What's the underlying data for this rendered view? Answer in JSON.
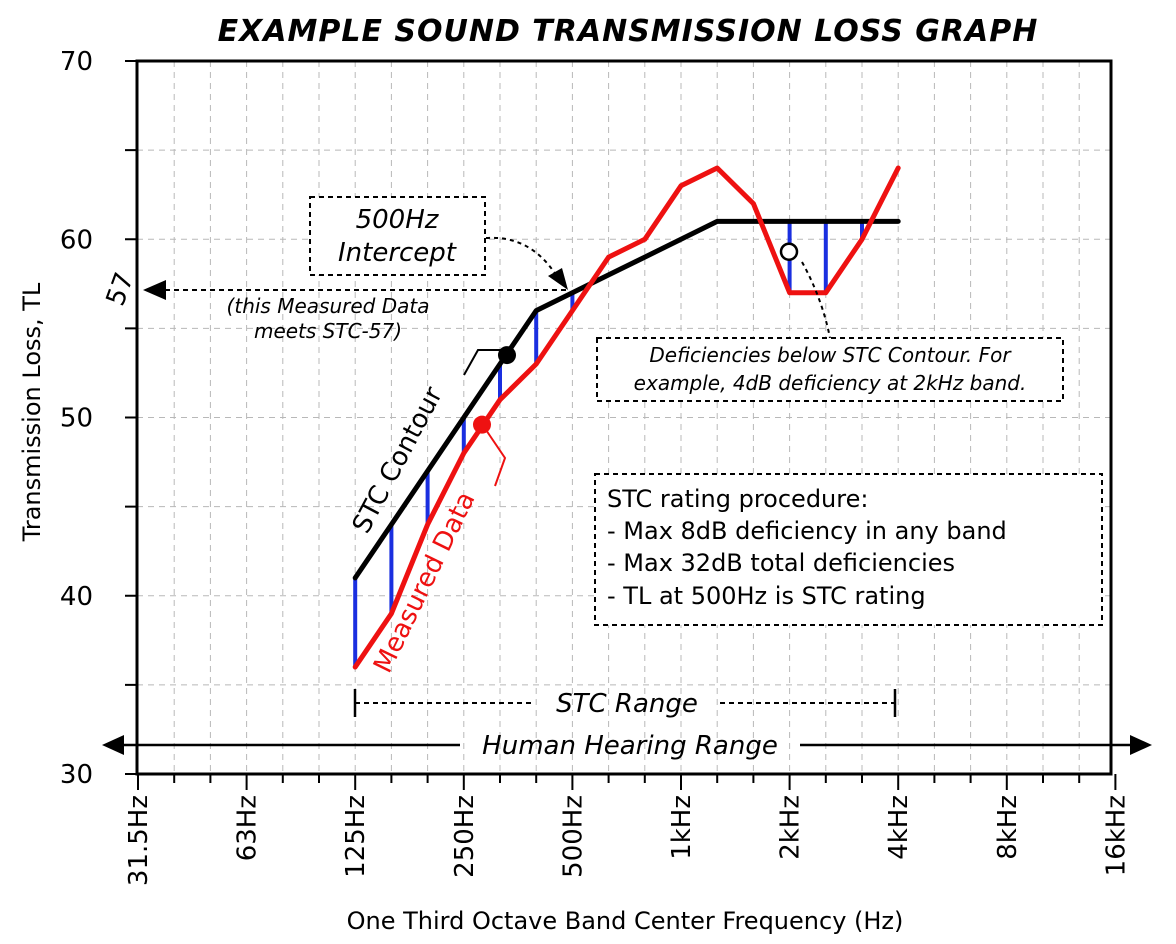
{
  "chart_data": {
    "type": "line",
    "title": "EXAMPLE SOUND TRANSMISSION LOSS GRAPH",
    "xlabel": "One Third Octave Band Center Frequency (Hz)",
    "ylabel": "Transmission Loss, TL",
    "ylim": [
      30,
      70
    ],
    "yticks": [
      "30",
      "40",
      "50",
      "60",
      "70"
    ],
    "xticks": [
      "31.5Hz",
      "63Hz",
      "125Hz",
      "250Hz",
      "500Hz",
      "1kHz",
      "2kHz",
      "4kHz",
      "8kHz",
      "16kHz"
    ],
    "grid": true,
    "x_bands": [
      "125Hz",
      "160Hz",
      "200Hz",
      "250Hz",
      "315Hz",
      "400Hz",
      "500Hz",
      "630Hz",
      "800Hz",
      "1kHz",
      "1.25kHz",
      "1.6kHz",
      "2kHz",
      "2.5kHz",
      "3.15kHz",
      "4kHz"
    ],
    "series": [
      {
        "name": "STC Contour",
        "color": "#000000",
        "values": [
          41,
          44,
          47,
          50,
          53,
          56,
          57,
          58,
          59,
          60,
          61,
          61,
          61,
          61,
          61,
          61
        ]
      },
      {
        "name": "Measured Data",
        "color": "#ee1111",
        "values": [
          36,
          39,
          44,
          48,
          51,
          53,
          56,
          59,
          60,
          63,
          64,
          62,
          57,
          57,
          60,
          64
        ]
      }
    ],
    "deficiency_color": "#1a2fe0",
    "stc_value_label": "57",
    "annotations": {
      "intercept": [
        "500Hz",
        "Intercept"
      ],
      "meets": [
        "(this Measured Data",
        "meets STC-57)"
      ],
      "deficiency": [
        "Deficiencies below STC Contour. For",
        "example, 4dB deficiency at 2kHz band."
      ],
      "procedure": [
        "STC rating procedure:",
        "- Max 8dB deficiency in any band",
        "- Max 32dB total deficiencies",
        "- TL at 500Hz is STC rating"
      ],
      "stc_range": "STC Range",
      "hearing_range": "Human Hearing Range"
    }
  }
}
